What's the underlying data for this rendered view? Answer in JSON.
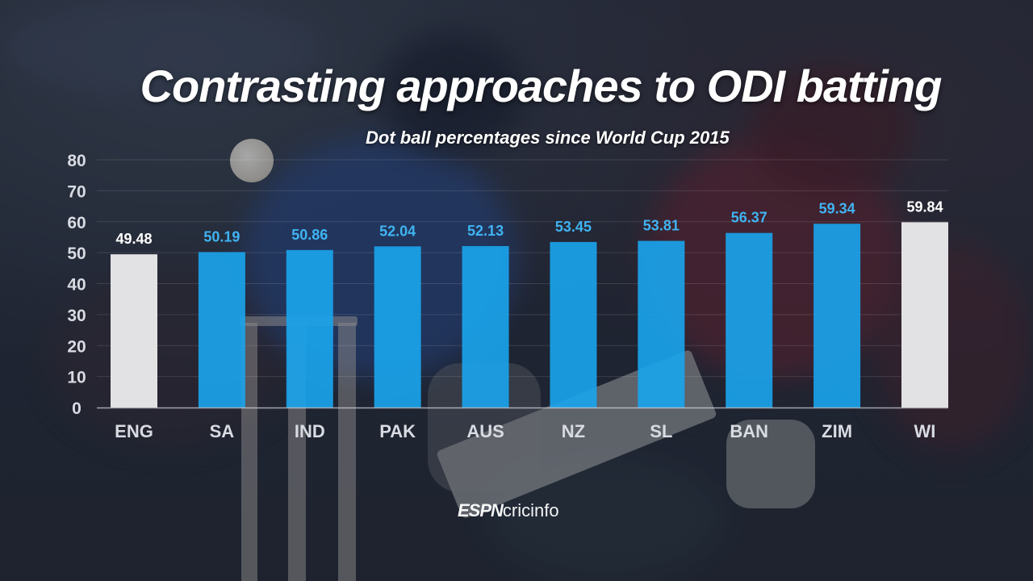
{
  "title": "Contrasting approaches to ODI batting",
  "subtitle": "Dot ball percentages since World Cup 2015",
  "logo": {
    "brand": "ESPN",
    "site": "cricinfo"
  },
  "colors": {
    "highlight_bar": "#ececee",
    "standard_bar": "#1aa3ea",
    "highlight_label": "#ffffff",
    "standard_label": "#3fb4f2",
    "axis": "#d8dbe2"
  },
  "chart_data": {
    "type": "bar",
    "categories": [
      "ENG",
      "SA",
      "IND",
      "PAK",
      "AUS",
      "NZ",
      "SL",
      "BAN",
      "ZIM",
      "WI"
    ],
    "values": [
      49.48,
      50.19,
      50.86,
      52.04,
      52.13,
      53.45,
      53.81,
      56.37,
      59.34,
      59.84
    ],
    "value_labels": [
      "49.48",
      "50.19",
      "50.86",
      "52.04",
      "52.13",
      "53.45",
      "53.81",
      "56.37",
      "59.34",
      "59.84"
    ],
    "highlighted": [
      "ENG",
      "WI"
    ],
    "ylim": [
      0,
      80
    ],
    "yticks": [
      0,
      10,
      20,
      30,
      40,
      50,
      60,
      70,
      80
    ],
    "grid": true,
    "legend": "none"
  }
}
